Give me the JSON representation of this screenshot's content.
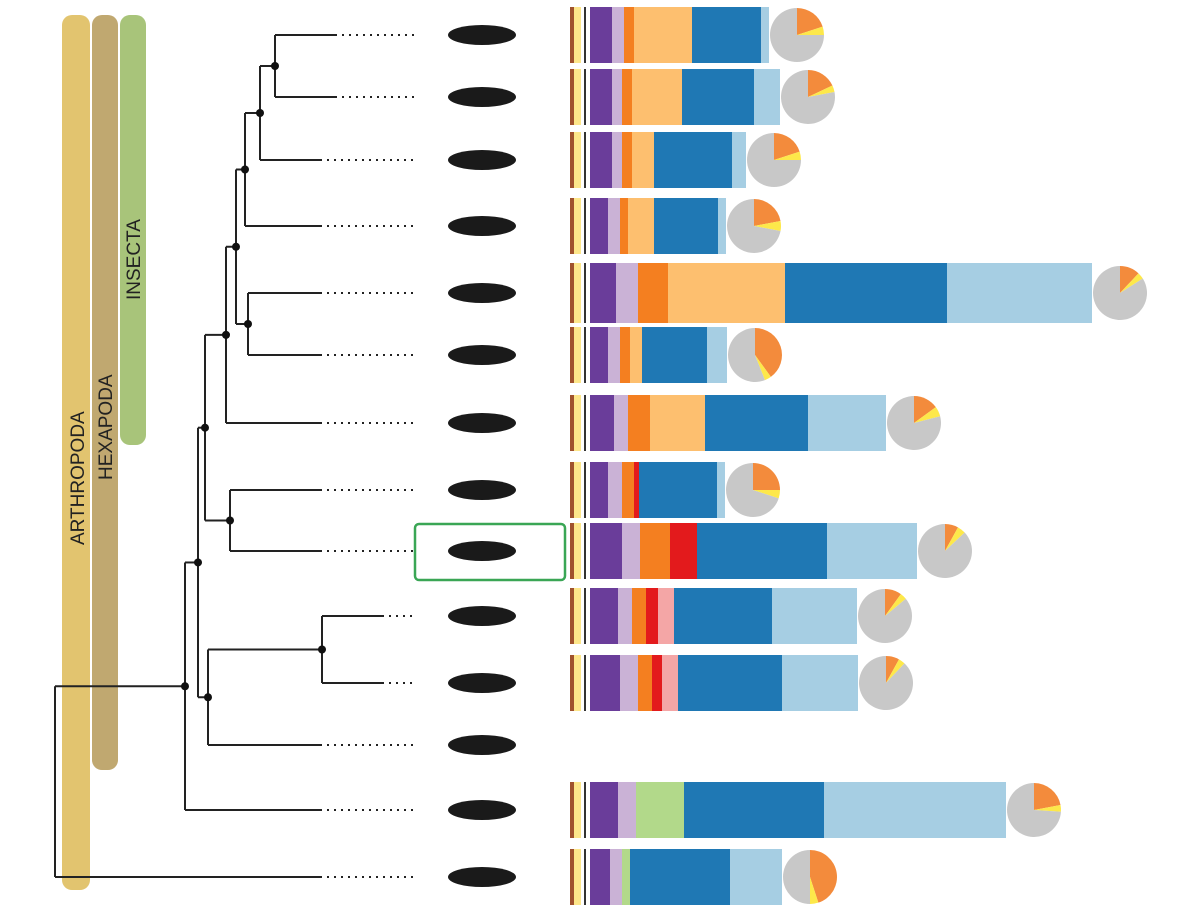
{
  "clades": [
    {
      "name": "ARTHROPODA"
    },
    {
      "name": "HEXAPODA"
    },
    {
      "name": "INSECTA"
    }
  ],
  "segment_colors": {
    "brown": "#a0522d",
    "yellow": "#fde68a",
    "purple": "#6a3d9a",
    "lavender": "#cab2d6",
    "orange": "#f47f20",
    "red": "#e31a1c",
    "pink": "#f4a6a6",
    "green": "#b2d98a",
    "lightorange": "#fdbf6f",
    "blue": "#1f78b4",
    "lightblue": "#a6cee3"
  },
  "pie_colors": [
    "#f38b3c",
    "#fde84a",
    "#c8c8c8"
  ],
  "rows": [
    {
      "bars": {
        "purple": 22,
        "lavender": 12,
        "orange": 10,
        "lightorange": 58,
        "blue": 69,
        "lightblue": 8
      },
      "pie": [
        20,
        5,
        75
      ]
    },
    {
      "bars": {
        "purple": 22,
        "lavender": 10,
        "orange": 10,
        "lightorange": 50,
        "blue": 72,
        "lightblue": 26
      },
      "pie": [
        18,
        4,
        78
      ]
    },
    {
      "bars": {
        "purple": 22,
        "lavender": 10,
        "orange": 10,
        "lightorange": 22,
        "blue": 78,
        "lightblue": 14
      },
      "pie": [
        20,
        5,
        75
      ]
    },
    {
      "bars": {
        "purple": 18,
        "lavender": 12,
        "orange": 8,
        "lightorange": 26,
        "blue": 64,
        "lightblue": 8
      },
      "pie": [
        22,
        6,
        72
      ]
    },
    {
      "bars": {
        "purple": 26,
        "lavender": 22,
        "orange": 30,
        "lightorange": 117,
        "blue": 162,
        "lightblue": 145
      },
      "pie": [
        12,
        4,
        84
      ]
    },
    {
      "bars": {
        "purple": 18,
        "lavender": 12,
        "orange": 10,
        "lightorange": 12,
        "blue": 65,
        "lightblue": 20
      },
      "pie": [
        40,
        4,
        56
      ]
    },
    {
      "bars": {
        "purple": 24,
        "lavender": 14,
        "orange": 22,
        "lightorange": 55,
        "blue": 103,
        "lightblue": 78
      },
      "pie": [
        15,
        6,
        79
      ]
    },
    {
      "bars": {
        "purple": 18,
        "lavender": 14,
        "orange": 12,
        "red": 5,
        "blue": 78,
        "lightblue": 8
      },
      "pie": [
        25,
        5,
        70
      ]
    },
    {
      "bars": {
        "purple": 32,
        "lavender": 18,
        "orange": 30,
        "red": 27,
        "blue": 130,
        "lightblue": 90
      },
      "pie": [
        8,
        5,
        87
      ]
    },
    {
      "bars": {
        "purple": 28,
        "lavender": 14,
        "orange": 14,
        "red": 12,
        "pink": 16,
        "blue": 98,
        "lightblue": 85
      },
      "pie": [
        10,
        4,
        86
      ]
    },
    {
      "bars": {
        "purple": 30,
        "lavender": 18,
        "orange": 14,
        "red": 10,
        "pink": 16,
        "blue": 104,
        "lightblue": 76
      },
      "pie": [
        8,
        4,
        88
      ]
    },
    {},
    {
      "bars": {
        "purple": 28,
        "lavender": 18,
        "green": 48,
        "blue": 140,
        "lightblue": 182
      },
      "pie": [
        22,
        4,
        74
      ]
    },
    {
      "bars": {
        "purple": 20,
        "lavender": 12,
        "green": 8,
        "blue": 100,
        "lightblue": 52
      },
      "pie": [
        45,
        5,
        50
      ]
    }
  ]
}
